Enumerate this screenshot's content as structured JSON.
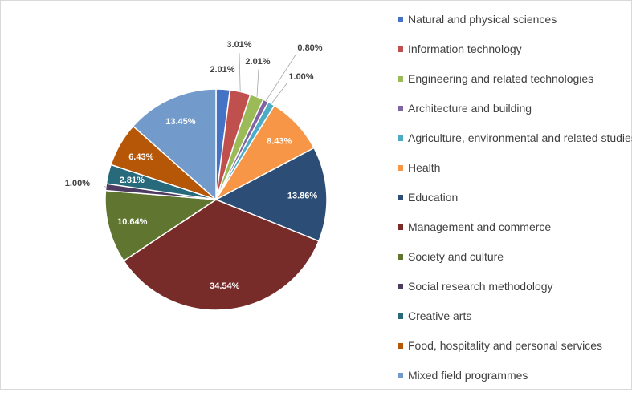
{
  "chart_data": {
    "type": "pie",
    "title": "",
    "legend_position": "right",
    "slices": [
      {
        "label": "Natural and physical sciences",
        "value": 2.01,
        "display": "2.01%",
        "color": "#4472c4"
      },
      {
        "label": "Information technology",
        "value": 3.01,
        "display": "3.01%",
        "color": "#c0504d"
      },
      {
        "label": "Engineering and related technologies",
        "value": 2.01,
        "display": "2.01%",
        "color": "#9bbb59"
      },
      {
        "label": "Architecture and building",
        "value": 0.8,
        "display": "0.80%",
        "color": "#8064a2"
      },
      {
        "label": "Agriculture, environmental and related studies",
        "value": 1.0,
        "display": "1.00%",
        "color": "#4bacc6"
      },
      {
        "label": "Health",
        "value": 8.43,
        "display": "8.43%",
        "color": "#f79646"
      },
      {
        "label": "Education",
        "value": 13.86,
        "display": "13.86%",
        "color": "#2c4d75"
      },
      {
        "label": "Management and commerce",
        "value": 34.54,
        "display": "34.54%",
        "color": "#772c2a"
      },
      {
        "label": "Society and culture",
        "value": 10.64,
        "display": "10.64%",
        "color": "#5f7530"
      },
      {
        "label": "Social research methodology",
        "value": 1.0,
        "display": "1.00%",
        "color": "#4d3b62"
      },
      {
        "label": "Creative arts",
        "value": 2.81,
        "display": "2.81%",
        "color": "#276a7c"
      },
      {
        "label": "Food, hospitality and personal services",
        "value": 6.43,
        "display": "6.43%",
        "color": "#b65708"
      },
      {
        "label": "Mixed field programmes",
        "value": 13.45,
        "display": "13.45%",
        "color": "#729aca"
      }
    ]
  }
}
